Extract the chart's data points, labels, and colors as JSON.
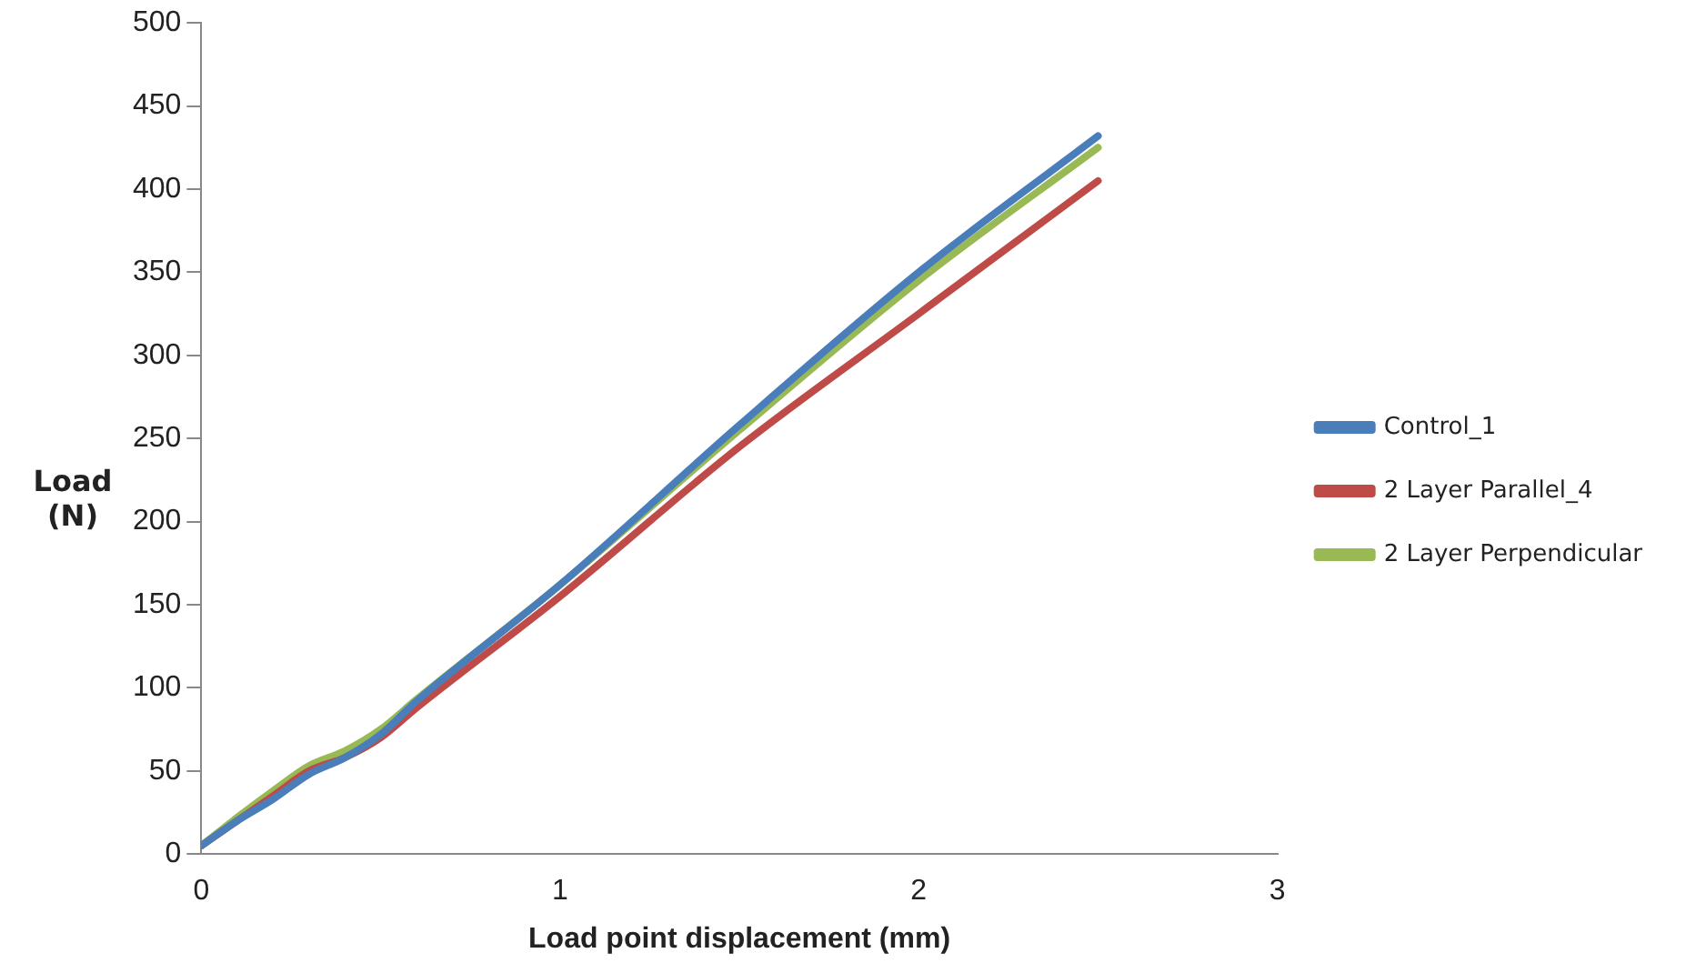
{
  "chart_data": {
    "type": "line",
    "xlabel": "Load point displacement (mm)",
    "ylabel": "Load\n(N)",
    "x": [
      0,
      0.1,
      0.2,
      0.3,
      0.4,
      0.5,
      0.6,
      1.0,
      1.5,
      2.0,
      2.5
    ],
    "series": [
      {
        "name": "Control_1",
        "color": "#4a7ebb",
        "values": [
          5,
          20,
          33,
          48,
          58,
          72,
          92,
          162,
          258,
          350,
          432
        ]
      },
      {
        "name": "2 Layer Parallel_4",
        "color": "#be4b48",
        "values": [
          5,
          20,
          35,
          50,
          58,
          70,
          88,
          155,
          245,
          325,
          405
        ]
      },
      {
        "name": "2 Layer Perpendicular",
        "color": "#98b954",
        "values": [
          5,
          22,
          38,
          53,
          62,
          75,
          93,
          162,
          255,
          345,
          425
        ]
      }
    ],
    "xlim": [
      0,
      3
    ],
    "xticks": [
      0,
      1,
      2,
      3
    ],
    "ylim": [
      0,
      500
    ],
    "yticks": [
      0,
      50,
      100,
      150,
      200,
      250,
      300,
      350,
      400,
      450,
      500
    ],
    "grid": false,
    "legend": "right",
    "marker": "none",
    "line_style": "solid"
  }
}
